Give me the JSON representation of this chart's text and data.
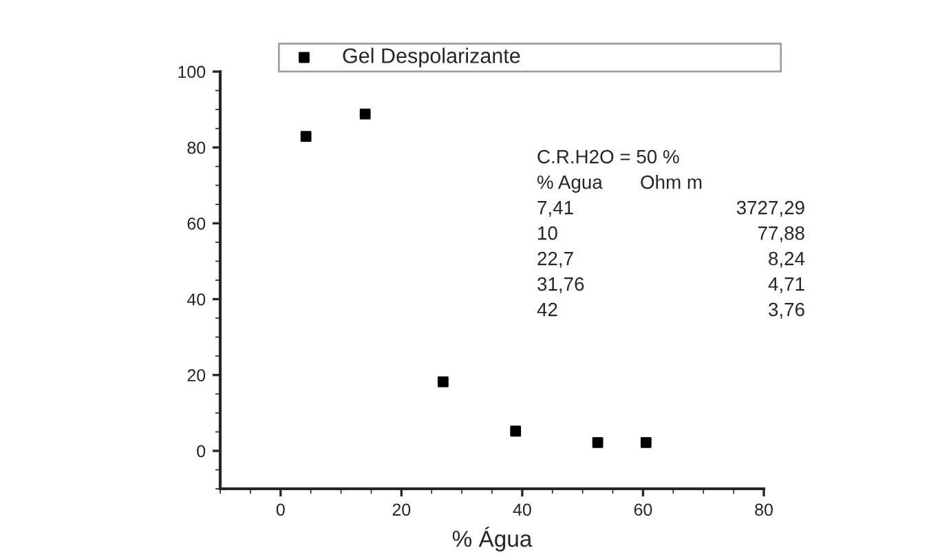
{
  "chart_data": {
    "type": "scatter",
    "xlabel": "% Água",
    "x": [
      4.2,
      14.0,
      26.9,
      38.9,
      52.5,
      60.5
    ],
    "series": [
      {
        "name": "Gel Despolarizante",
        "color": "#000000",
        "values": [
          82.9,
          88.8,
          18.2,
          5.2,
          2.2,
          2.2
        ]
      }
    ],
    "xlim": [
      -10,
      80
    ],
    "ylim": [
      -10,
      100
    ],
    "xticks": [
      0,
      20,
      40,
      60,
      80
    ],
    "yticks": [
      0,
      20,
      40,
      60,
      80,
      100
    ],
    "marker": "square",
    "legend": "top",
    "grid": false,
    "annotations": [
      "C.R.H2O = 50 %",
      "% Agua",
      "Ohm m",
      "7,41",
      "3727,29",
      "10",
      "77,88",
      "22,7",
      "8,24",
      "31,76",
      "4,71",
      "42",
      "3,76"
    ]
  }
}
